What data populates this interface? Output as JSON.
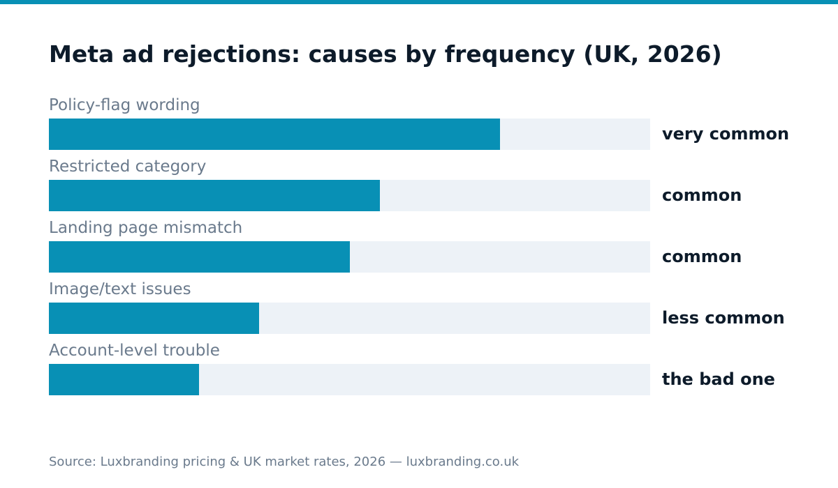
{
  "colors": {
    "accent": "#0890b5",
    "track": "#edf2f7",
    "title_text": "#0d1b2a",
    "muted_text": "#6a7a8c"
  },
  "chart_data": {
    "type": "bar",
    "orientation": "horizontal",
    "title": "Meta ad rejections: causes by frequency (UK, 2026)",
    "categories": [
      "Policy-flag wording",
      "Restricted category",
      "Landing page mismatch",
      "Image/text issues",
      "Account-level trouble"
    ],
    "values": [
      0.75,
      0.55,
      0.5,
      0.35,
      0.25
    ],
    "value_labels": [
      "very common",
      "common",
      "common",
      "less common",
      "the bad one"
    ],
    "xlim": [
      0,
      1
    ],
    "grid": false,
    "legend": "none"
  },
  "footer": {
    "source": "Source: Luxbranding pricing & UK market rates, 2026 — luxbranding.co.uk"
  }
}
